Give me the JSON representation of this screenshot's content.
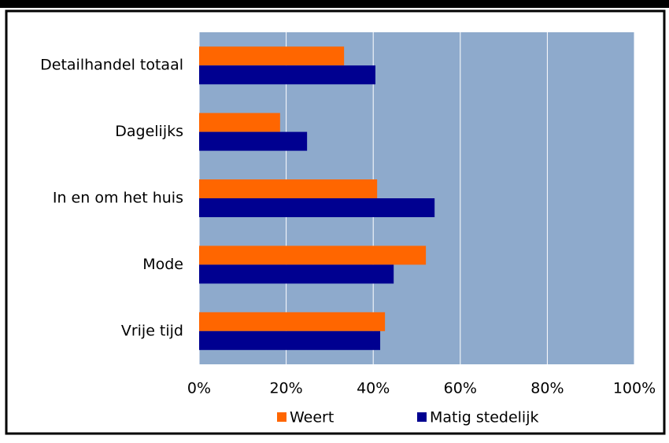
{
  "chart_data": {
    "type": "hbar",
    "categories": [
      "Detailhandel totaal",
      "Dagelijks",
      "In en om het huis",
      "Mode",
      "Vrije tijd"
    ],
    "series": [
      {
        "name": "Weert",
        "color": "#ff6600",
        "values": [
          33.3,
          18.6,
          40.9,
          52.1,
          42.7
        ]
      },
      {
        "name": "Matig stedelijk",
        "color": "#000090",
        "values": [
          40.5,
          24.8,
          54.1,
          44.7,
          41.6
        ]
      }
    ],
    "xlim": [
      0,
      100
    ],
    "xticks": [
      {
        "value": 0,
        "label": "0%"
      },
      {
        "value": 20,
        "label": "20%"
      },
      {
        "value": 40,
        "label": "40%"
      },
      {
        "value": 60,
        "label": "60%"
      },
      {
        "value": 80,
        "label": "80%"
      },
      {
        "value": 100,
        "label": "100%"
      }
    ],
    "grid": true,
    "plot_background": "#8eaacc",
    "legend": "bottom"
  }
}
